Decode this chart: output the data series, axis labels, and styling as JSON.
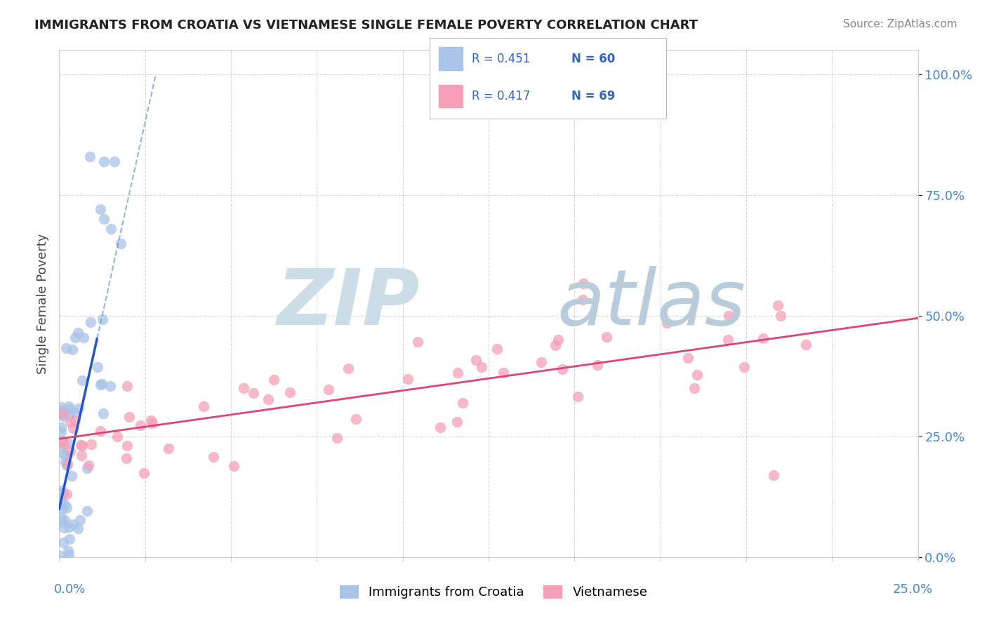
{
  "title": "IMMIGRANTS FROM CROATIA VS VIETNAMESE SINGLE FEMALE POVERTY CORRELATION CHART",
  "source": "Source: ZipAtlas.com",
  "ylabel": "Single Female Poverty",
  "yticks_labels": [
    "0.0%",
    "25.0%",
    "50.0%",
    "75.0%",
    "100.0%"
  ],
  "ytick_vals": [
    0.0,
    0.25,
    0.5,
    0.75,
    1.0
  ],
  "legend_label1": "Immigrants from Croatia",
  "legend_label2": "Vietnamese",
  "R1": 0.451,
  "N1": 60,
  "R2": 0.417,
  "N2": 69,
  "color1": "#a8c4e8",
  "color2": "#f5a0b8",
  "trendline1_color": "#2255cc",
  "trendline2_color": "#dd4477",
  "trendline1_dashed_color": "#6699cc",
  "watermark_zip_color": "#ccdde8",
  "watermark_atlas_color": "#b8ccdc",
  "background_color": "#ffffff",
  "tick_color": "#4488cc",
  "grid_color": "#cccccc",
  "title_color": "#222222",
  "source_color": "#888888",
  "legend_text_color": "#3366bb"
}
